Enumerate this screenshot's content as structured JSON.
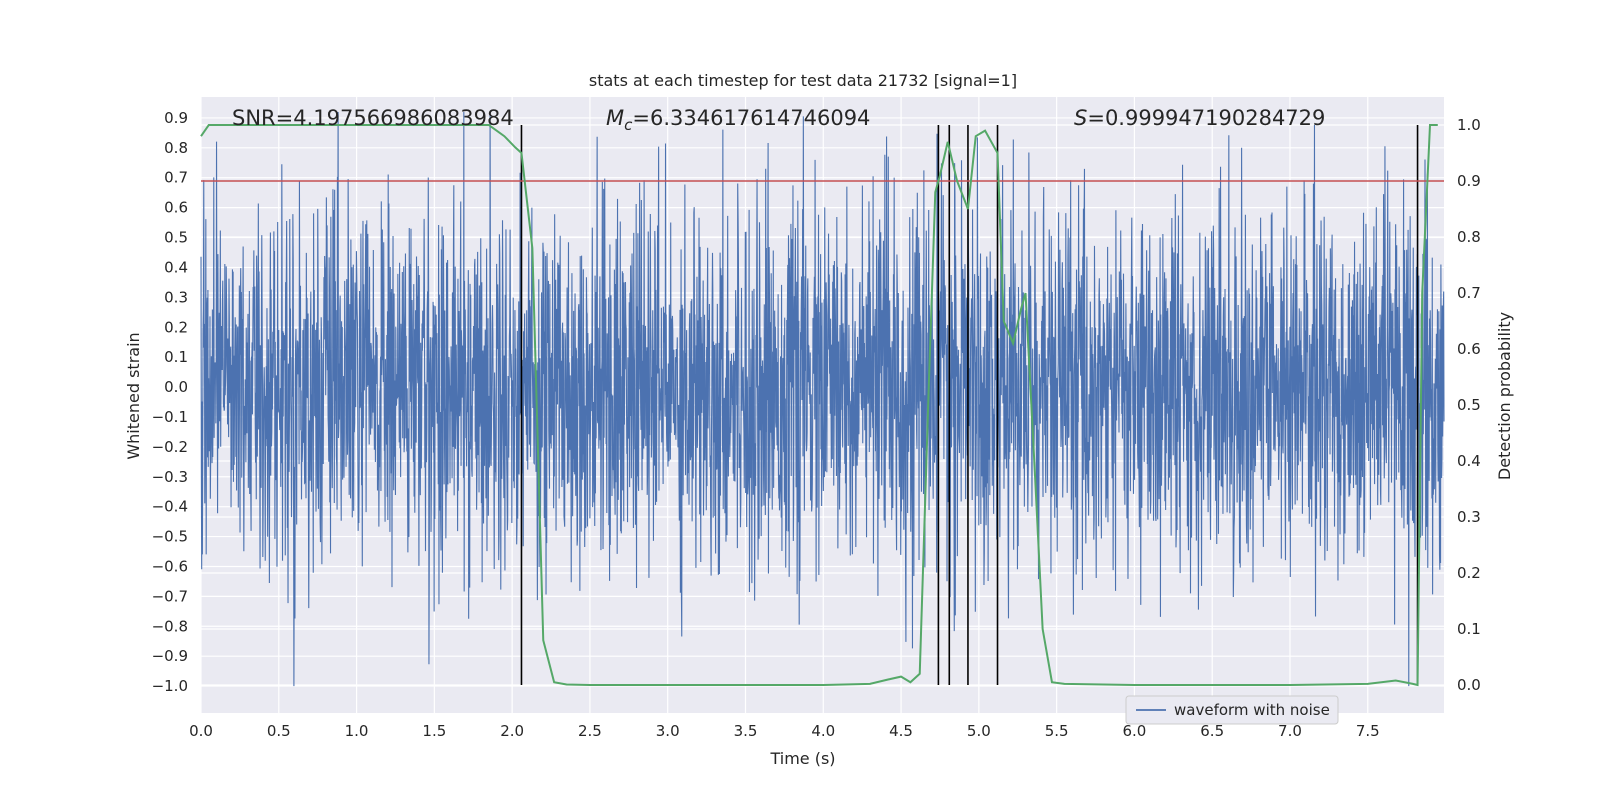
{
  "chart_data": {
    "type": "line",
    "title": "stats at each timestep for test data 21732 [signal=1]",
    "xlabel": "Time (s)",
    "ylabel_left": "Whitened strain",
    "ylabel_right": "Detection probability",
    "xlim": [
      0.0,
      7.99
    ],
    "ylim_left": [
      -1.09,
      0.97
    ],
    "ylim_right": [
      -0.05,
      1.05
    ],
    "x_ticks": [
      "0.0",
      "0.5",
      "1.0",
      "1.5",
      "2.0",
      "2.5",
      "3.0",
      "3.5",
      "4.0",
      "4.5",
      "5.0",
      "5.5",
      "6.0",
      "6.5",
      "7.0",
      "7.5"
    ],
    "x_tick_values": [
      0.0,
      0.5,
      1.0,
      1.5,
      2.0,
      2.5,
      3.0,
      3.5,
      4.0,
      4.5,
      5.0,
      5.5,
      6.0,
      6.5,
      7.0,
      7.5
    ],
    "y_left_ticks": [
      "0.9",
      "0.8",
      "0.7",
      "0.6",
      "0.5",
      "0.4",
      "0.3",
      "0.2",
      "0.1",
      "0.0",
      "−0.1",
      "−0.2",
      "−0.3",
      "−0.4",
      "−0.5",
      "−0.6",
      "−0.7",
      "−0.8",
      "−0.9",
      "−1.0"
    ],
    "y_left_tick_values": [
      0.9,
      0.8,
      0.7,
      0.6,
      0.5,
      0.4,
      0.3,
      0.2,
      0.1,
      0.0,
      -0.1,
      -0.2,
      -0.3,
      -0.4,
      -0.5,
      -0.6,
      -0.7,
      -0.8,
      -0.9,
      -1.0
    ],
    "y_right_ticks": [
      "1.0",
      "0.9",
      "0.8",
      "0.7",
      "0.6",
      "0.5",
      "0.4",
      "0.3",
      "0.2",
      "0.1",
      "0.0"
    ],
    "y_right_tick_values": [
      1.0,
      0.9,
      0.8,
      0.7,
      0.6,
      0.5,
      0.4,
      0.3,
      0.2,
      0.1,
      0.0
    ],
    "annotations": {
      "snr": "SNR=4.197566986083984",
      "mc_symbol": "M",
      "mc_sub": "c",
      "mc_value": "=6.334617614746094",
      "s_symbol": "S",
      "s_value": "=0.999947190284729"
    },
    "threshold": {
      "value": 0.9,
      "axis": "right",
      "color": "#c44e52"
    },
    "vertical_lines": [
      2.06,
      4.74,
      4.81,
      4.93,
      5.12,
      7.82
    ],
    "series": [
      {
        "name": "waveform with noise",
        "axis": "left",
        "color": "#4c72b0",
        "t_range": [
          0.0,
          7.99
        ],
        "envelope_amplitude": 0.3,
        "envelope_extreme": [
          -1.0,
          0.92
        ]
      },
      {
        "name": "detection probability",
        "axis": "right",
        "color": "#55a868",
        "x": [
          0.0,
          0.05,
          0.1,
          0.5,
          1.0,
          1.5,
          1.85,
          1.95,
          2.02,
          2.06,
          2.13,
          2.2,
          2.27,
          2.35,
          2.5,
          3.0,
          3.5,
          4.0,
          4.3,
          4.42,
          4.5,
          4.56,
          4.62,
          4.68,
          4.72,
          4.75,
          4.8,
          4.86,
          4.93,
          4.98,
          5.04,
          5.08,
          5.12,
          5.16,
          5.22,
          5.27,
          5.3,
          5.36,
          5.41,
          5.47,
          5.55,
          6.0,
          6.5,
          7.0,
          7.5,
          7.68,
          7.79,
          7.82,
          7.85,
          7.9,
          7.95
        ],
        "y": [
          0.98,
          1.0,
          1.0,
          1.0,
          1.0,
          1.0,
          1.0,
          0.98,
          0.96,
          0.95,
          0.78,
          0.08,
          0.005,
          0.001,
          0.0,
          0.0,
          0.0,
          0.0,
          0.002,
          0.01,
          0.015,
          0.005,
          0.02,
          0.55,
          0.88,
          0.91,
          0.97,
          0.9,
          0.85,
          0.98,
          0.99,
          0.97,
          0.95,
          0.65,
          0.61,
          0.67,
          0.7,
          0.38,
          0.1,
          0.005,
          0.002,
          0.0,
          0.0,
          0.0,
          0.002,
          0.008,
          0.002,
          0.0,
          0.7,
          1.0,
          1.0
        ]
      }
    ],
    "legend": {
      "entries": [
        "waveform with noise"
      ],
      "placement": "lower-right"
    },
    "grid": true,
    "style": {
      "background": "#eaeaf2",
      "grid_color": "#ffffff",
      "vline_color": "#000000"
    }
  }
}
